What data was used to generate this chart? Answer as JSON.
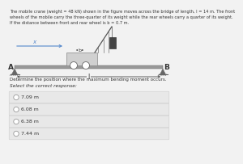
{
  "background_color": "#f2f2f2",
  "title_text_line1": "The mobile crane (weight = 48 kN) shown in the figure moves across the bridge of length, l = 14 m. The front",
  "title_text_line2": "wheels of the mobile carry the three-quarter of its weight while the rear wheels carry a quarter of its weight.",
  "title_text_line3": "If the distance between front and rear wheel is b = 0.7 m.",
  "question_text": "Determine the position where the maximum bending moment occurs.",
  "select_text": "Select the correct response:",
  "options": [
    "7.09 m",
    "6.08 m",
    "6.38 m",
    "7.44 m"
  ],
  "option_bg": "#e8e8e8",
  "white_bg": "#ffffff",
  "text_color": "#333333",
  "bridge_color": "#999999",
  "crane_body_color": "#d0d0d0",
  "crane_body_edge": "#888888",
  "support_color": "#666666",
  "wheel_color": "#ffffff",
  "wheel_edge": "#666666",
  "blue_line_color": "#5588cc",
  "arrow_color": "#444444",
  "boom_color": "#555555",
  "load_color": "#444444",
  "label_a": "A",
  "label_b": "B",
  "label_l": "l",
  "label_x": "x",
  "label_b_dist": "b"
}
